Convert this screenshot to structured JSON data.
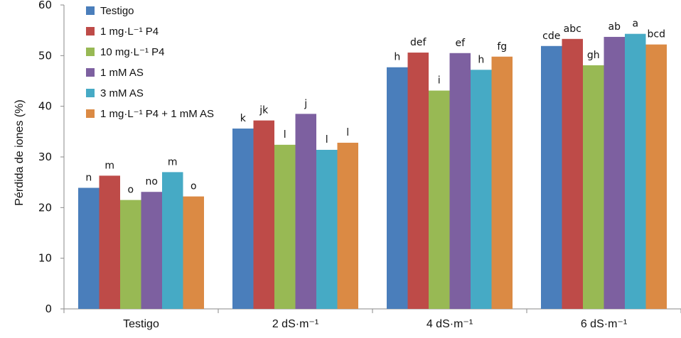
{
  "chart_data": {
    "type": "bar",
    "title": "",
    "xlabel": "",
    "ylabel": "Pérdida de iones (%)",
    "ylim": [
      0,
      60
    ],
    "yticks": [
      0,
      10,
      20,
      30,
      40,
      50,
      60
    ],
    "categories": [
      "Testigo",
      "2 dS·m⁻¹",
      "4 dS·m⁻¹",
      "6 dS·m⁻¹"
    ],
    "series": [
      {
        "name": "Testigo",
        "color": "#4A7EBB",
        "values": [
          23.9,
          35.6,
          47.7,
          51.9
        ],
        "labels": [
          "n",
          "k",
          "h",
          "cde"
        ]
      },
      {
        "name": "1 mg·L⁻¹ P4",
        "color": "#BE4B48",
        "values": [
          26.3,
          37.2,
          50.6,
          53.3
        ],
        "labels": [
          "m",
          "jk",
          "def",
          "abc"
        ]
      },
      {
        "name": "10 mg·L⁻¹ P4",
        "color": "#98B954",
        "values": [
          21.5,
          32.4,
          43.1,
          48.1
        ],
        "labels": [
          "o",
          "l",
          "i",
          "gh"
        ]
      },
      {
        "name": "1 mM AS",
        "color": "#7D60A0",
        "values": [
          23.1,
          38.5,
          50.5,
          53.7
        ],
        "labels": [
          "no",
          "j",
          "ef",
          "ab"
        ]
      },
      {
        "name": "3 mM AS",
        "color": "#46AAC5",
        "values": [
          27.0,
          31.4,
          47.2,
          54.3
        ],
        "labels": [
          "m",
          "l",
          "h",
          "a"
        ]
      },
      {
        "name": "1 mg·L⁻¹ P4 + 1 mM AS",
        "color": "#DB8A44",
        "values": [
          22.2,
          32.8,
          49.8,
          52.2
        ],
        "labels": [
          "o",
          "l",
          "fg",
          "bcd"
        ]
      }
    ],
    "legend_position": "top-left",
    "grid": false
  }
}
